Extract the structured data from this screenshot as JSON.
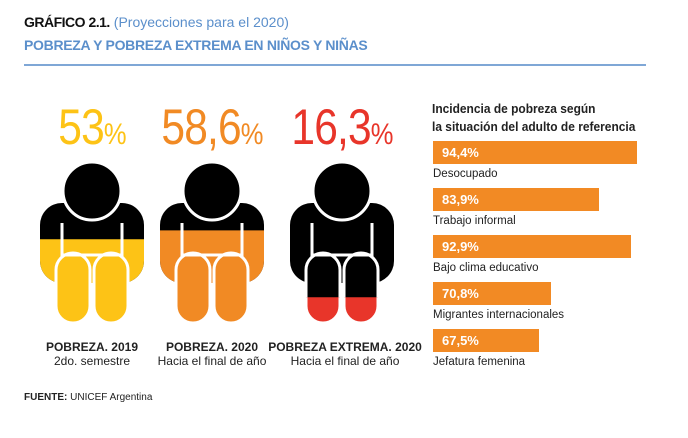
{
  "header": {
    "label": "GRÁFICO 2.1.",
    "subtitle": "(Proyecciones para el 2020)",
    "title": "POBREZA Y POBREZA EXTREMA EN NIÑOS Y NIÑAS"
  },
  "figures": [
    {
      "value_text": "53",
      "pct": "%",
      "value": 53,
      "color": "#FDC316",
      "label": "POBREZA. 2019",
      "sublabel": "2do. semestre"
    },
    {
      "value_text": "58,6",
      "pct": "%",
      "value": 58.6,
      "color": "#F18A24",
      "label": "POBREZA. 2020",
      "sublabel": "Hacia el final de año"
    },
    {
      "value_text": "16,3",
      "pct": "%",
      "value": 16.3,
      "color": "#E8352A",
      "label": "POBREZA EXTREMA. 2020",
      "sublabel": "Hacia el final de año"
    }
  ],
  "chart_data": {
    "type": "bar",
    "title": "Incidencia de pobreza según la situación del adulto de referencia",
    "title_lines": [
      "Incidencia de pobreza según",
      "la situación del adulto de referencia"
    ],
    "categories": [
      "Desocupado",
      "Trabajo informal",
      "Bajo clima educativo",
      "Migrantes internacionales",
      "Jefatura femenina"
    ],
    "values": [
      94.4,
      83.9,
      92.9,
      70.8,
      67.5
    ],
    "labels": [
      "94,4%",
      "83,9%",
      "92,9%",
      "70,8%",
      "67,5%"
    ],
    "bar_color": "#F28A24",
    "orientation": "horizontal"
  },
  "footer": {
    "source_label": "FUENTE:",
    "source": "UNICEF Argentina"
  }
}
